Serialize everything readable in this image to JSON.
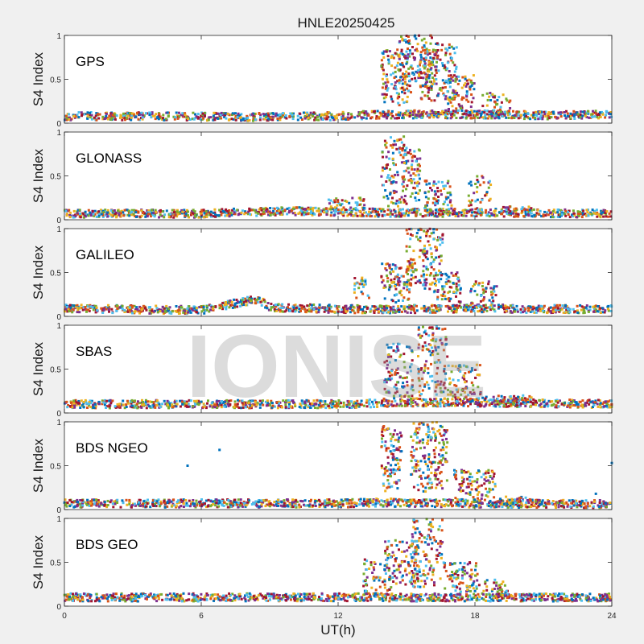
{
  "title": "HNLE20250425",
  "watermark": "IONISE",
  "chart_data": {
    "type": "scatter",
    "title": "HNLE20250425",
    "xlabel": "UT(h)",
    "ylabel": "S4 Index",
    "xlim": [
      0,
      24
    ],
    "ylim": [
      0,
      1
    ],
    "xticks": [
      "0",
      "6",
      "12",
      "18",
      "24"
    ],
    "yticks": [
      "0",
      "0.5",
      "1"
    ],
    "grid": false,
    "colors": [
      "#0072BD",
      "#D95319",
      "#EDB120",
      "#7E2F8E",
      "#77AC30",
      "#4DBEEE",
      "#A2142F"
    ],
    "panels": [
      {
        "name": "GPS",
        "baseline": [
          {
            "x": 0,
            "y": 0.08
          },
          {
            "x": 4,
            "y": 0.08
          },
          {
            "x": 8,
            "y": 0.07
          },
          {
            "x": 12,
            "y": 0.08
          },
          {
            "x": 14,
            "y": 0.1
          },
          {
            "x": 18,
            "y": 0.1
          },
          {
            "x": 21,
            "y": 0.09
          },
          {
            "x": 24,
            "y": 0.1
          }
        ],
        "events": [
          {
            "x0": 13.9,
            "x1": 15.2,
            "ymin": 0.2,
            "ymax": 0.85,
            "n": 120
          },
          {
            "x0": 14.6,
            "x1": 16.4,
            "ymin": 0.4,
            "ymax": 1.0,
            "n": 160
          },
          {
            "x0": 15.6,
            "x1": 17.2,
            "ymin": 0.25,
            "ymax": 0.9,
            "n": 120
          },
          {
            "x0": 16.8,
            "x1": 18.0,
            "ymin": 0.15,
            "ymax": 0.55,
            "n": 80
          },
          {
            "x0": 18.3,
            "x1": 19.6,
            "ymin": 0.1,
            "ymax": 0.35,
            "n": 40
          }
        ]
      },
      {
        "name": "GLONASS",
        "baseline": [
          {
            "x": 0,
            "y": 0.07
          },
          {
            "x": 6,
            "y": 0.07
          },
          {
            "x": 9.8,
            "y": 0.1
          },
          {
            "x": 12,
            "y": 0.09
          },
          {
            "x": 14,
            "y": 0.08
          },
          {
            "x": 18,
            "y": 0.08
          },
          {
            "x": 24,
            "y": 0.07
          }
        ],
        "events": [
          {
            "x0": 11.5,
            "x1": 13.2,
            "ymin": 0.08,
            "ymax": 0.25,
            "n": 50
          },
          {
            "x0": 13.9,
            "x1": 15.0,
            "ymin": 0.15,
            "ymax": 0.95,
            "n": 100
          },
          {
            "x0": 14.8,
            "x1": 15.6,
            "ymin": 0.2,
            "ymax": 0.8,
            "n": 80
          },
          {
            "x0": 15.8,
            "x1": 17.0,
            "ymin": 0.1,
            "ymax": 0.45,
            "n": 70
          },
          {
            "x0": 17.7,
            "x1": 18.7,
            "ymin": 0.1,
            "ymax": 0.5,
            "n": 40
          },
          {
            "x0": 19.0,
            "x1": 20.5,
            "ymin": 0.05,
            "ymax": 0.15,
            "n": 30
          }
        ]
      },
      {
        "name": "GALILEO",
        "baseline": [
          {
            "x": 0,
            "y": 0.09
          },
          {
            "x": 3,
            "y": 0.08
          },
          {
            "x": 6,
            "y": 0.07
          },
          {
            "x": 8.5,
            "y": 0.2
          },
          {
            "x": 9,
            "y": 0.1
          },
          {
            "x": 13,
            "y": 0.08
          },
          {
            "x": 18,
            "y": 0.09
          },
          {
            "x": 24,
            "y": 0.08
          }
        ],
        "events": [
          {
            "x0": 12.7,
            "x1": 13.4,
            "ymin": 0.2,
            "ymax": 0.45,
            "n": 25
          },
          {
            "x0": 13.9,
            "x1": 15.2,
            "ymin": 0.15,
            "ymax": 0.6,
            "n": 100
          },
          {
            "x0": 15.0,
            "x1": 16.6,
            "ymin": 0.3,
            "ymax": 1.0,
            "n": 150
          },
          {
            "x0": 16.2,
            "x1": 17.4,
            "ymin": 0.1,
            "ymax": 0.5,
            "n": 80
          },
          {
            "x0": 17.8,
            "x1": 19.0,
            "ymin": 0.1,
            "ymax": 0.4,
            "n": 50
          }
        ]
      },
      {
        "name": "SBAS",
        "baseline": [
          {
            "x": 0,
            "y": 0.1
          },
          {
            "x": 12,
            "y": 0.1
          },
          {
            "x": 15,
            "y": 0.12
          },
          {
            "x": 18,
            "y": 0.12
          },
          {
            "x": 24,
            "y": 0.1
          }
        ],
        "events": [
          {
            "x0": 14.0,
            "x1": 15.3,
            "ymin": 0.15,
            "ymax": 0.8,
            "n": 100
          },
          {
            "x0": 15.5,
            "x1": 16.8,
            "ymin": 0.2,
            "ymax": 1.0,
            "n": 120
          },
          {
            "x0": 16.8,
            "x1": 18.3,
            "ymin": 0.15,
            "ymax": 0.55,
            "n": 80
          },
          {
            "x0": 18.3,
            "x1": 20.5,
            "ymin": 0.1,
            "ymax": 0.2,
            "n": 40
          }
        ]
      },
      {
        "name": "BDS NGEO",
        "baseline": [
          {
            "x": 0,
            "y": 0.07
          },
          {
            "x": 6,
            "y": 0.07
          },
          {
            "x": 12,
            "y": 0.07
          },
          {
            "x": 14,
            "y": 0.08
          },
          {
            "x": 18,
            "y": 0.07
          },
          {
            "x": 24,
            "y": 0.06
          }
        ],
        "events": [
          {
            "x0": 13.9,
            "x1": 14.8,
            "ymin": 0.2,
            "ymax": 0.95,
            "n": 100
          },
          {
            "x0": 15.2,
            "x1": 16.8,
            "ymin": 0.2,
            "ymax": 1.0,
            "n": 180
          },
          {
            "x0": 17.1,
            "x1": 18.9,
            "ymin": 0.1,
            "ymax": 0.45,
            "n": 100
          },
          {
            "x0": 19.0,
            "x1": 20.5,
            "ymin": 0.05,
            "ymax": 0.15,
            "n": 30
          }
        ],
        "outliers": [
          {
            "x": 5.4,
            "y": 0.5
          },
          {
            "x": 6.8,
            "y": 0.68
          },
          {
            "x": 23.3,
            "y": 0.18
          },
          {
            "x": 24,
            "y": 0.53
          }
        ]
      },
      {
        "name": "BDS GEO",
        "baseline": [
          {
            "x": 0,
            "y": 0.1
          },
          {
            "x": 12,
            "y": 0.1
          },
          {
            "x": 18,
            "y": 0.1
          },
          {
            "x": 24,
            "y": 0.1
          }
        ],
        "events": [
          {
            "x0": 13.1,
            "x1": 14.3,
            "ymin": 0.1,
            "ymax": 0.55,
            "n": 60
          },
          {
            "x0": 14.0,
            "x1": 15.6,
            "ymin": 0.2,
            "ymax": 0.75,
            "n": 120
          },
          {
            "x0": 15.2,
            "x1": 16.6,
            "ymin": 0.2,
            "ymax": 1.0,
            "n": 120
          },
          {
            "x0": 16.6,
            "x1": 18.2,
            "ymin": 0.15,
            "ymax": 0.5,
            "n": 90
          },
          {
            "x0": 18.3,
            "x1": 19.5,
            "ymin": 0.1,
            "ymax": 0.3,
            "n": 40
          }
        ]
      }
    ]
  }
}
